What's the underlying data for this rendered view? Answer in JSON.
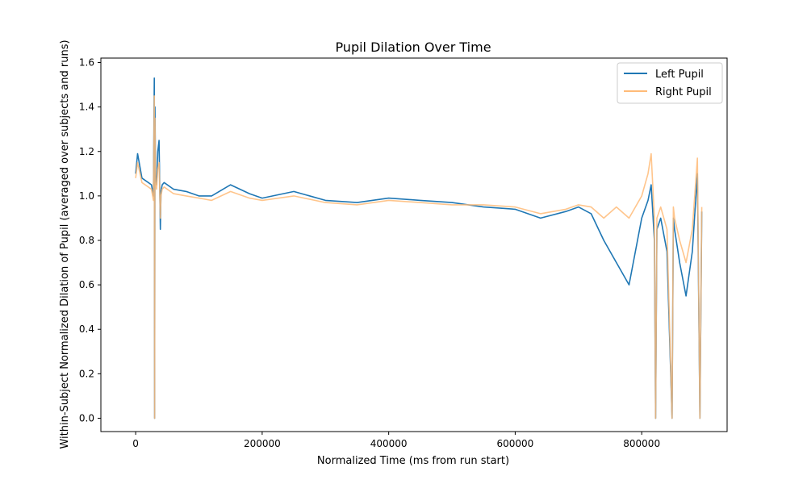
{
  "chart_data": {
    "type": "line",
    "title": "Pupil Dilation Over Time",
    "xlabel": "Normalized Time (ms from run start)",
    "ylabel": "Within-Subject Normalized Dilation of Pupil (averaged over subjects and runs)",
    "xlim": [
      -55000,
      935000
    ],
    "ylim": [
      -0.06,
      1.62
    ],
    "xticks": [
      0,
      200000,
      400000,
      600000,
      800000
    ],
    "xtick_labels": [
      "0",
      "200000",
      "400000",
      "600000",
      "800000"
    ],
    "yticks": [
      0.0,
      0.2,
      0.4,
      0.6,
      0.8,
      1.0,
      1.2,
      1.4,
      1.6
    ],
    "ytick_labels": [
      "0.0",
      "0.2",
      "0.4",
      "0.6",
      "0.8",
      "1.0",
      "1.2",
      "1.4",
      "1.6"
    ],
    "grid": false,
    "legend_position": "top-right",
    "series": [
      {
        "name": "Left Pupil",
        "color": "#1f77b4",
        "x": [
          0,
          3000,
          10000,
          20000,
          25000,
          28000,
          29500,
          30000,
          30500,
          31500,
          33000,
          35000,
          37000,
          39000,
          40000,
          42000,
          45000,
          60000,
          80000,
          100000,
          120000,
          150000,
          180000,
          200000,
          250000,
          300000,
          350000,
          400000,
          450000,
          500000,
          550000,
          600000,
          640000,
          680000,
          700000,
          720000,
          740000,
          760000,
          780000,
          800000,
          810000,
          815000,
          820000,
          822000,
          824000,
          830000,
          840000,
          848000,
          850000,
          852000,
          860000,
          870000,
          880000,
          888000,
          892000,
          895000
        ],
        "y": [
          1.1,
          1.19,
          1.08,
          1.06,
          1.05,
          1.0,
          1.53,
          0.0,
          1.4,
          1.08,
          1.05,
          1.2,
          1.25,
          0.85,
          1.02,
          1.05,
          1.06,
          1.03,
          1.02,
          1.0,
          1.0,
          1.05,
          1.01,
          0.99,
          1.02,
          0.98,
          0.97,
          0.99,
          0.98,
          0.97,
          0.95,
          0.94,
          0.9,
          0.93,
          0.95,
          0.92,
          0.8,
          0.7,
          0.6,
          0.9,
          0.98,
          1.05,
          0.8,
          0.0,
          0.85,
          0.9,
          0.75,
          0.0,
          0.9,
          0.85,
          0.7,
          0.55,
          0.75,
          1.1,
          0.0,
          0.93
        ]
      },
      {
        "name": "Right Pupil",
        "color": "#ffbb78",
        "x": [
          0,
          3000,
          10000,
          20000,
          25000,
          28000,
          29500,
          30000,
          30500,
          31500,
          33000,
          35000,
          37000,
          39000,
          40000,
          42000,
          45000,
          60000,
          80000,
          100000,
          120000,
          150000,
          180000,
          200000,
          250000,
          300000,
          350000,
          400000,
          450000,
          500000,
          550000,
          600000,
          640000,
          680000,
          700000,
          720000,
          740000,
          760000,
          780000,
          800000,
          810000,
          815000,
          820000,
          822000,
          824000,
          830000,
          840000,
          848000,
          850000,
          852000,
          860000,
          870000,
          880000,
          888000,
          892000,
          895000
        ],
        "y": [
          1.08,
          1.15,
          1.06,
          1.04,
          1.03,
          0.98,
          1.45,
          0.0,
          1.35,
          1.06,
          1.03,
          1.12,
          1.15,
          0.9,
          1.0,
          1.03,
          1.04,
          1.01,
          1.0,
          0.99,
          0.98,
          1.02,
          0.99,
          0.98,
          1.0,
          0.97,
          0.96,
          0.98,
          0.97,
          0.96,
          0.96,
          0.95,
          0.92,
          0.94,
          0.96,
          0.95,
          0.9,
          0.95,
          0.9,
          1.0,
          1.1,
          1.19,
          0.9,
          0.0,
          0.9,
          0.95,
          0.85,
          0.0,
          0.95,
          0.9,
          0.8,
          0.7,
          0.85,
          1.17,
          0.0,
          0.95
        ]
      }
    ]
  }
}
